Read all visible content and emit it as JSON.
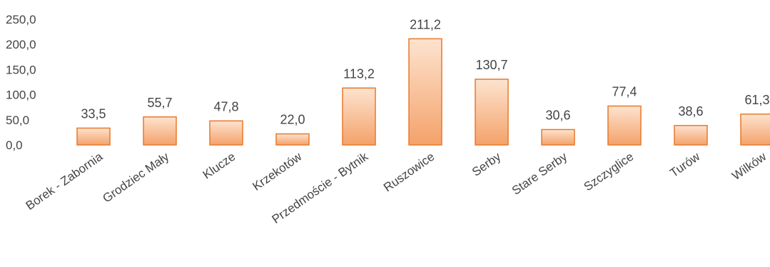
{
  "chart_data": {
    "type": "bar",
    "categories": [
      "Borek - Zabornia",
      "Grodziec Mały",
      "Klucze",
      "Krzekotów",
      "Przedmoście - Bytnik",
      "Ruszowice",
      "Serby",
      "Stare Serby",
      "Szczyglice",
      "Turów",
      "Wilków"
    ],
    "values": [
      33.5,
      55.7,
      47.8,
      22.0,
      113.2,
      211.2,
      130.7,
      30.6,
      77.4,
      38.6,
      61.3
    ],
    "value_labels": [
      "33,5",
      "55,7",
      "47,8",
      "22,0",
      "113,2",
      "211,2",
      "130,7",
      "30,6",
      "77,4",
      "38,6",
      "61,3"
    ],
    "yticks": [
      0,
      50,
      100,
      150,
      200,
      250
    ],
    "ytick_labels": [
      "0,0",
      "50,0",
      "100,0",
      "150,0",
      "200,0",
      "250,0"
    ],
    "ylim": [
      0,
      250
    ],
    "grid": false,
    "legend": "none",
    "colors": {
      "bar_top": "#fde3cf",
      "bar_bottom": "#f4a26a",
      "bar_border": "#e8792a",
      "text": "#444444"
    }
  }
}
